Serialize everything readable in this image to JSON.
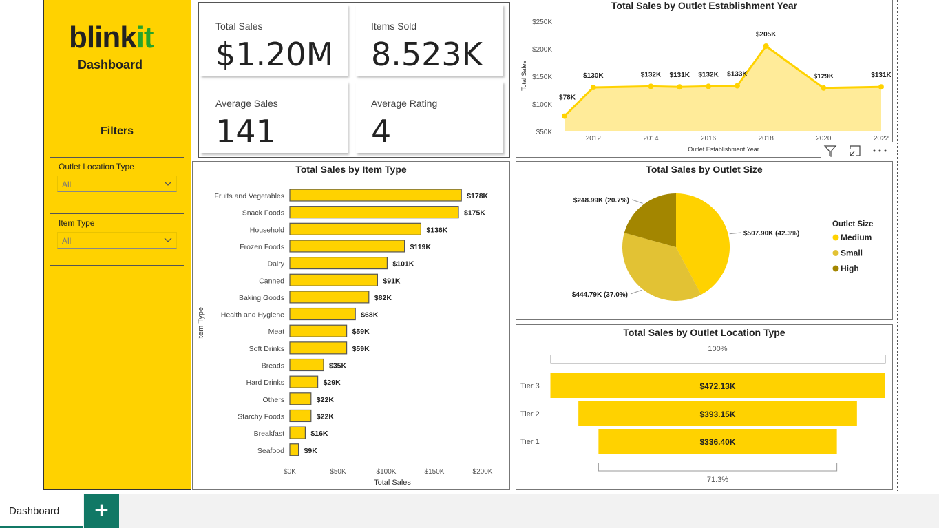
{
  "sidebar": {
    "logo_main": "blink",
    "logo_accent": "it",
    "subtitle": "Dashboard",
    "filters_label": "Filters",
    "slicers": [
      {
        "title": "Outlet Location Type",
        "value": "All"
      },
      {
        "title": "Item Type",
        "value": "All"
      }
    ]
  },
  "kpis": [
    {
      "title": "Total Sales",
      "value": "$1.20M"
    },
    {
      "title": "Items Sold",
      "value": "8.523K"
    },
    {
      "title": "Average Sales",
      "value": "141"
    },
    {
      "title": "Average Rating",
      "value": "4"
    }
  ],
  "colors": {
    "primary": "#FFD200",
    "area_fill": "#FFEB99",
    "small": "#E2C234",
    "high": "#A38600",
    "accent_green": "#117865"
  },
  "chart_data": [
    {
      "id": "year",
      "type": "area",
      "title": "Total Sales by Outlet Establishment Year",
      "xlabel": "Outlet Establishment Year",
      "ylabel": "Total Sales",
      "x": [
        2011,
        2012,
        2014,
        2015,
        2016,
        2017,
        2018,
        2020,
        2022
      ],
      "values": [
        78,
        130,
        132,
        131,
        132,
        133,
        205,
        129,
        131
      ],
      "labels": [
        "$78K",
        "$130K",
        "$132K",
        "$131K",
        "$132K",
        "$133K",
        "$205K",
        "$129K",
        "$131K"
      ],
      "xticks": [
        "2012",
        "2014",
        "2016",
        "2018",
        "2020",
        "2022"
      ],
      "yticks": [
        "$50K",
        "$100K",
        "$150K",
        "$200K",
        "$250K"
      ],
      "ylim": [
        50,
        250
      ]
    },
    {
      "id": "item",
      "type": "bar",
      "title": "Total Sales by Item Type",
      "xlabel": "Total Sales",
      "ylabel": "Item Type",
      "categories": [
        "Fruits and Vegetables",
        "Snack Foods",
        "Household",
        "Frozen Foods",
        "Dairy",
        "Canned",
        "Baking Goods",
        "Health and Hygiene",
        "Meat",
        "Soft Drinks",
        "Breads",
        "Hard Drinks",
        "Others",
        "Starchy Foods",
        "Breakfast",
        "Seafood"
      ],
      "values": [
        178,
        175,
        136,
        119,
        101,
        91,
        82,
        68,
        59,
        59,
        35,
        29,
        22,
        22,
        16,
        9
      ],
      "labels": [
        "$178K",
        "$175K",
        "$136K",
        "$119K",
        "$101K",
        "$91K",
        "$82K",
        "$68K",
        "$59K",
        "$59K",
        "$35K",
        "$29K",
        "$22K",
        "$22K",
        "$16K",
        "$9K"
      ],
      "xticks": [
        "$0K",
        "$50K",
        "$100K",
        "$150K",
        "$200K"
      ],
      "xlim": [
        0,
        200
      ]
    },
    {
      "id": "size",
      "type": "pie",
      "title": "Total Sales by Outlet Size",
      "legend_title": "Outlet Size",
      "categories": [
        "Medium",
        "Small",
        "High"
      ],
      "values": [
        507.9,
        444.79,
        248.99
      ],
      "percent": [
        42.3,
        37.0,
        20.7
      ],
      "labels": [
        "$507.90K (42.3%)",
        "$444.79K (37.0%)",
        "$248.99K (20.7%)"
      ]
    },
    {
      "id": "location",
      "type": "funnel",
      "title": "Total Sales by Outlet Location Type",
      "categories": [
        "Tier 3",
        "Tier 2",
        "Tier 1"
      ],
      "values": [
        472.13,
        393.15,
        336.4
      ],
      "labels": [
        "$472.13K",
        "$393.15K",
        "$336.40K"
      ],
      "top_label": "100%",
      "bottom_label": "71.3%"
    }
  ],
  "tabs": {
    "active": "Dashboard",
    "add": "+"
  }
}
